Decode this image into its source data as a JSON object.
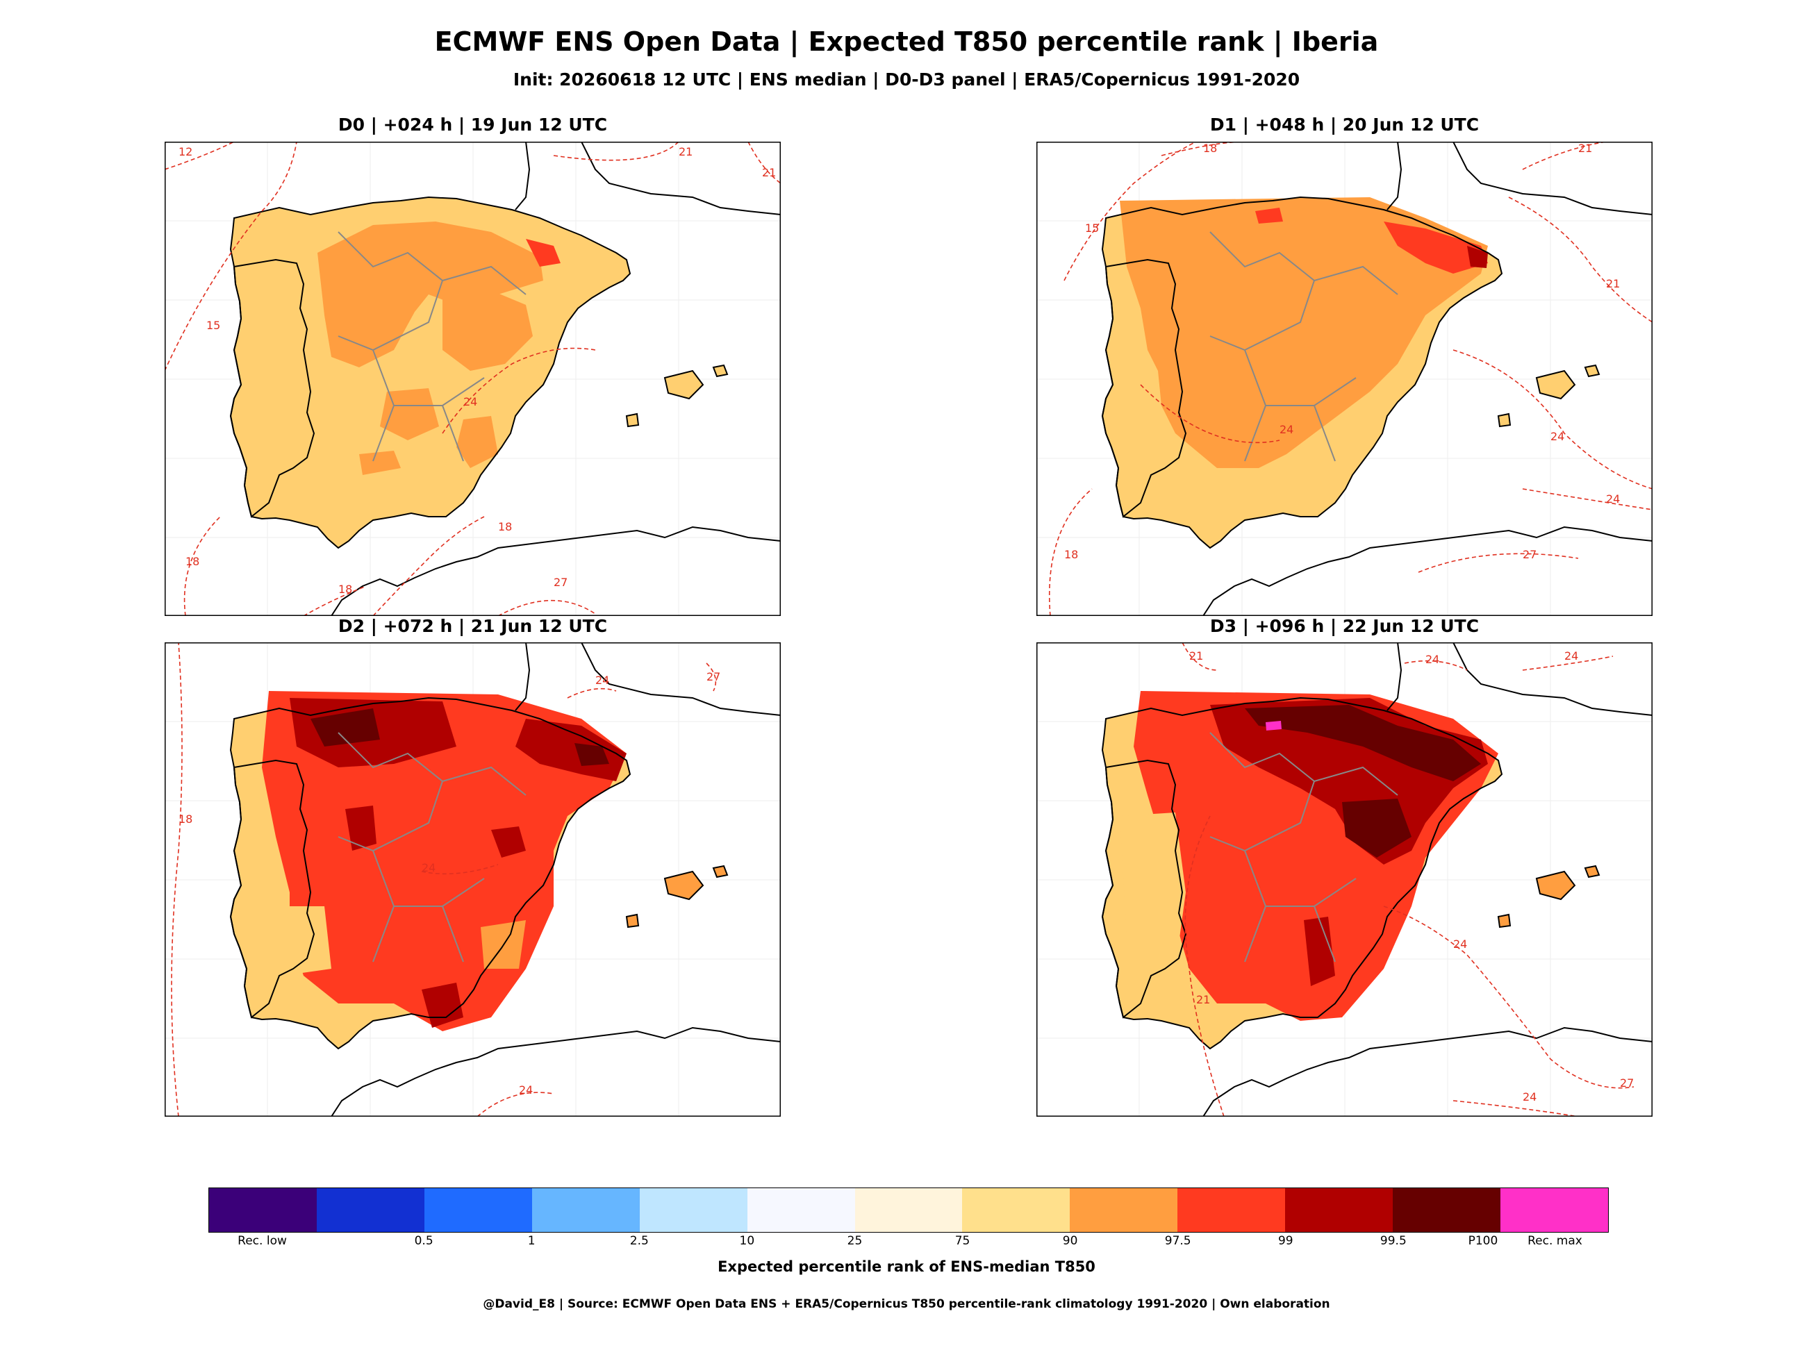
{
  "title": "ECMWF ENS Open Data | Expected T850 percentile rank | Iberia",
  "subtitle": "Init: 20260618 12 UTC | ENS median | D0-D3 panel | ERA5/Copernicus 1991-2020",
  "panels": [
    {
      "title": "D0 | +024 h | 19 Jun 12 UTC",
      "fill_class": "90-97.5",
      "contours": [
        "12",
        "15",
        "18",
        "18",
        "18",
        "21",
        "21",
        "24",
        "27"
      ]
    },
    {
      "title": "D1 | +048 h | 20 Jun 12 UTC",
      "fill_class": "97.5",
      "contours": [
        "15",
        "18",
        "18",
        "21",
        "21",
        "24",
        "24",
        "24",
        "27"
      ]
    },
    {
      "title": "D2 | +072 h | 21 Jun 12 UTC",
      "fill_class": "99",
      "contours": [
        "18",
        "24",
        "24",
        "24",
        "27"
      ]
    },
    {
      "title": "D3 | +096 h | 22 Jun 12 UTC",
      "fill_class": "99.5",
      "contours": [
        "21",
        "21",
        "24",
        "24",
        "24",
        "24",
        "27"
      ]
    }
  ],
  "colorbar": {
    "colors": [
      "#3b0079",
      "#1230d2",
      "#1f6bff",
      "#66b6ff",
      "#bfe6ff",
      "#f6f8ff",
      "#fff4dc",
      "#ffe08c",
      "#ff9e40",
      "#ff3a20",
      "#b00000",
      "#660000",
      "#ff30c8"
    ],
    "ticks": [
      "Rec. low",
      "0.5",
      "1",
      "2.5",
      "10",
      "25",
      "75",
      "90",
      "97.5",
      "99",
      "99.5",
      "P100",
      "Rec. max"
    ],
    "label": "Expected percentile rank of ENS-median T850"
  },
  "credit": "@David_E8 | Source: ECMWF Open Data ENS + ERA5/Copernicus T850 percentile-rank climatology 1991-2020 | Own elaboration",
  "map_colors": {
    "land": "#ffcf70",
    "heat1": "#ff9e40",
    "heat2": "#ff3a20",
    "heat3": "#b00000",
    "heat4": "#660000",
    "contour": "#e03020",
    "coast": "#000000",
    "borders": "#888888"
  }
}
